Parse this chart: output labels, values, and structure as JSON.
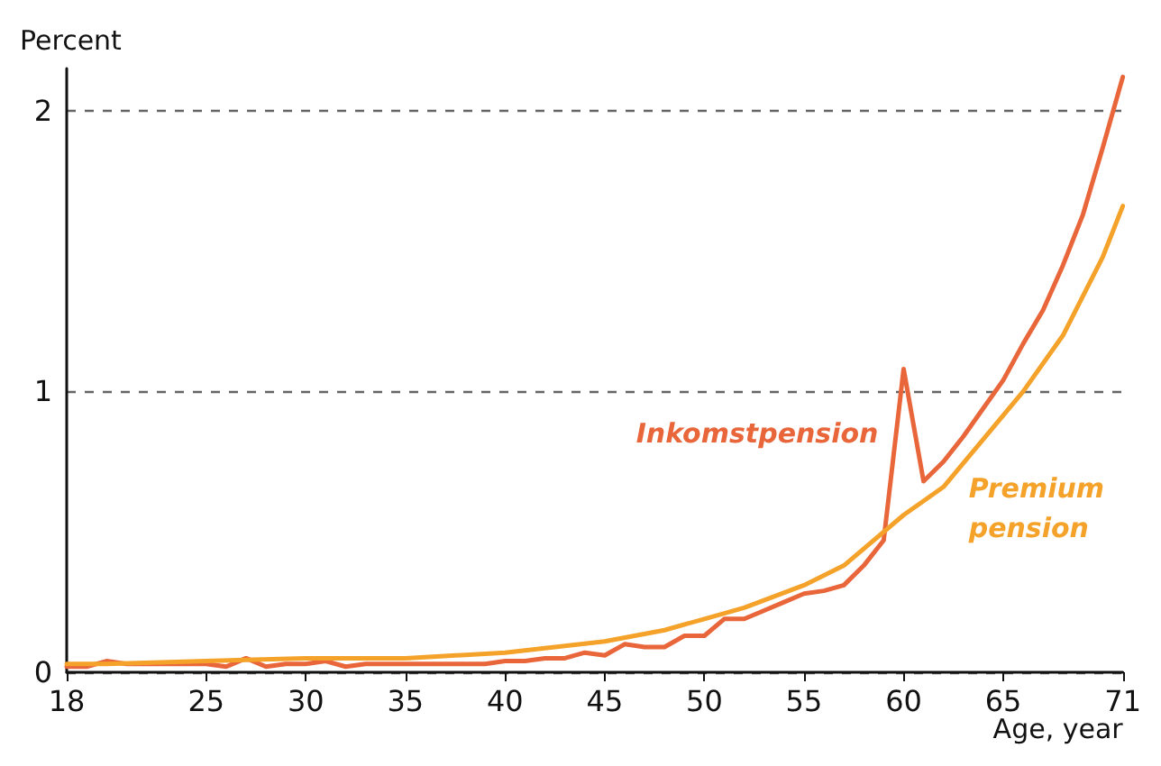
{
  "chart_data": {
    "type": "line",
    "ylabel": "Percent",
    "xlabel": "Age, year",
    "xlim": [
      18,
      71
    ],
    "xticks": [
      18,
      25,
      30,
      35,
      40,
      45,
      50,
      55,
      60,
      65,
      71
    ],
    "ylim": [
      0,
      2.15
    ],
    "yticks": [
      0,
      1,
      2
    ],
    "grid": "y",
    "line_style": "solid",
    "marker": "none",
    "legend": false,
    "series": [
      {
        "name": "Inkomstpension",
        "color": "#e8663a",
        "x": [
          18,
          19,
          20,
          21,
          22,
          23,
          24,
          25,
          26,
          27,
          28,
          29,
          30,
          31,
          32,
          33,
          34,
          35,
          36,
          37,
          38,
          39,
          40,
          41,
          42,
          43,
          44,
          45,
          46,
          47,
          48,
          49,
          50,
          51,
          52,
          53,
          54,
          55,
          56,
          57,
          58,
          59,
          60,
          61,
          62,
          63,
          64,
          65,
          66,
          67,
          68,
          69,
          70,
          71
        ],
        "values": [
          0.02,
          0.02,
          0.04,
          0.03,
          0.03,
          0.03,
          0.03,
          0.03,
          0.02,
          0.05,
          0.02,
          0.03,
          0.03,
          0.04,
          0.02,
          0.03,
          0.03,
          0.03,
          0.03,
          0.03,
          0.03,
          0.03,
          0.04,
          0.04,
          0.05,
          0.05,
          0.07,
          0.06,
          0.1,
          0.09,
          0.09,
          0.13,
          0.13,
          0.19,
          0.19,
          0.22,
          0.25,
          0.28,
          0.29,
          0.31,
          0.38,
          0.47,
          1.08,
          0.68,
          0.75,
          0.84,
          0.94,
          1.04,
          1.17,
          1.29,
          1.45,
          1.63,
          1.87,
          2.12
        ]
      },
      {
        "name": "Premium pension",
        "color": "#f5a22a",
        "x": [
          18,
          20,
          25,
          30,
          35,
          40,
          45,
          48,
          50,
          52,
          55,
          57,
          60,
          62,
          64,
          66,
          68,
          70,
          71
        ],
        "values": [
          0.03,
          0.03,
          0.04,
          0.05,
          0.05,
          0.07,
          0.11,
          0.15,
          0.19,
          0.23,
          0.31,
          0.38,
          0.56,
          0.66,
          0.83,
          1.0,
          1.2,
          1.48,
          1.66
        ]
      }
    ]
  }
}
